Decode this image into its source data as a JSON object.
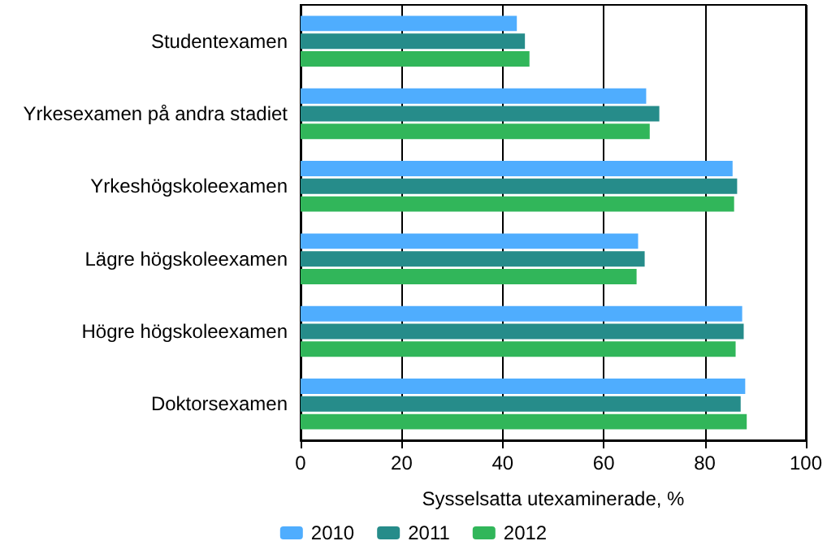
{
  "chart_data": {
    "type": "bar",
    "orientation": "horizontal",
    "xlabel": "Sysselsatta utexaminerade, %",
    "categories": [
      "Studentexamen",
      "Yrkesexamen på andra stadiet",
      "Yrkeshögskoleexamen",
      "Lägre högskoleexamen",
      "Högre högskoleexamen",
      "Doktorsexamen"
    ],
    "series": [
      {
        "name": "2010",
        "color": "#4fadfe",
        "values": [
          42.8,
          68.4,
          85.5,
          66.8,
          87.4,
          88.0
        ]
      },
      {
        "name": "2011",
        "color": "#268c8a",
        "values": [
          44.4,
          71.0,
          86.4,
          68.1,
          87.7,
          87.1
        ]
      },
      {
        "name": "2012",
        "color": "#31b65a",
        "values": [
          45.3,
          69.1,
          85.8,
          66.5,
          86.1,
          88.3
        ]
      }
    ],
    "xlim": [
      0,
      100
    ],
    "xticks": [
      0,
      20,
      40,
      60,
      80,
      100
    ],
    "grid": "x",
    "legend": "bottom"
  }
}
